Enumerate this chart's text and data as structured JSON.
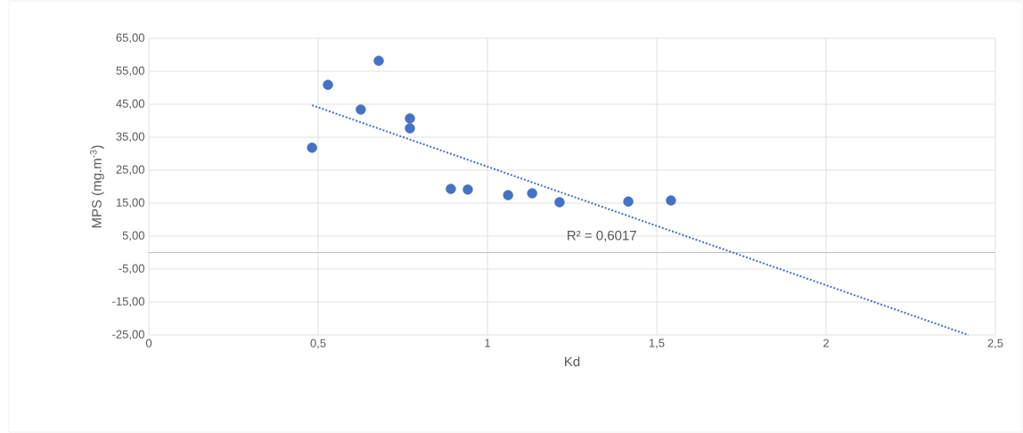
{
  "chart_data": {
    "type": "scatter",
    "xlabel": "Kd",
    "ylabel": "MPS (mg.m$^{-3}$)",
    "series": [
      {
        "color": "#4472c4",
        "x": [
          0.482,
          0.529,
          0.626,
          0.679,
          0.771,
          0.771,
          0.892,
          0.942,
          1.061,
          1.132,
          1.213,
          1.416,
          1.542
        ],
        "values": [
          31.8,
          50.9,
          43.4,
          58.2,
          40.7,
          37.7,
          19.3,
          19.1,
          17.4,
          18.0,
          15.3,
          15.5,
          15.8
        ]
      },
      {
        "type": "line",
        "color": "#4472c4",
        "line_style": "dotted",
        "marker": "none",
        "x": [
          0.482,
          2.42
        ],
        "values": [
          44.7,
          -25
        ]
      }
    ],
    "annotations": [
      "R² = 0,6017"
    ],
    "ref_lines": [
      {
        "axis": "y",
        "value": 0,
        "color": "#bfbfbf"
      }
    ],
    "xlim": [
      0,
      2.5
    ],
    "ylim": [
      -25,
      65
    ],
    "xticks": [
      0,
      {
        "value": 0.5,
        "label": "0,5"
      },
      1,
      {
        "value": 1.5,
        "label": "1,5"
      },
      2,
      {
        "value": 2.5,
        "label": "2,5"
      }
    ],
    "yticks": [
      {
        "value": -25,
        "label": "-25,00"
      },
      {
        "value": -15,
        "label": "-15,00"
      },
      {
        "value": -5,
        "label": "-5,00"
      },
      {
        "value": 5,
        "label": "5,00"
      },
      {
        "value": 15,
        "label": "15,00"
      },
      {
        "value": 25,
        "label": "25,00"
      },
      {
        "value": 35,
        "label": "35,00"
      },
      {
        "value": 45,
        "label": "45,00"
      },
      {
        "value": 55,
        "label": "55,00"
      },
      {
        "value": 65,
        "label": "65,00"
      }
    ],
    "grid": true,
    "marker": "circle"
  }
}
